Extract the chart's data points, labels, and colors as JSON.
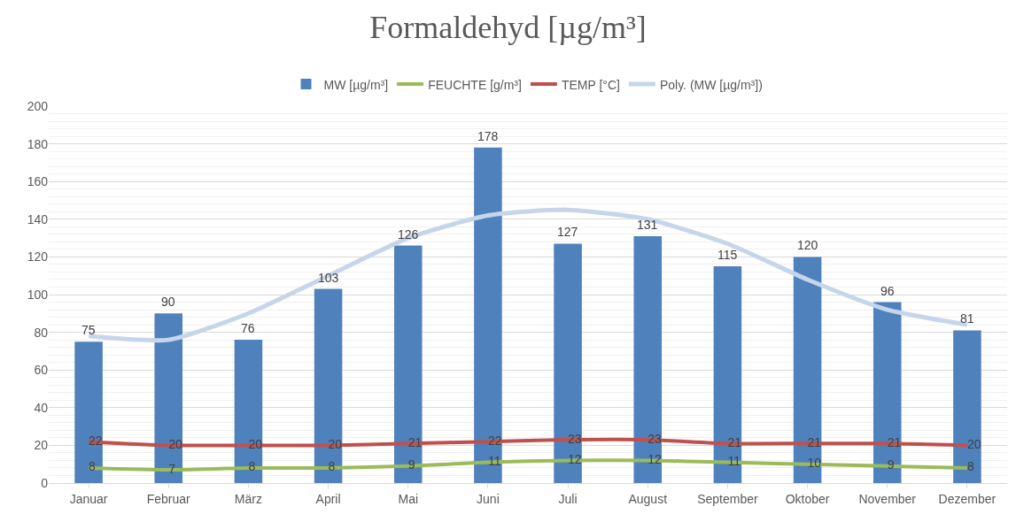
{
  "chart_data": {
    "type": "bar",
    "title": "Formaldehyd [µg/m³]",
    "categories": [
      "Januar",
      "Februar",
      "März",
      "April",
      "Mai",
      "Juni",
      "Juli",
      "August",
      "September",
      "Oktober",
      "November",
      "Dezember"
    ],
    "series": [
      {
        "name": "MW [µg/m³]",
        "color": "#4f81bd",
        "values": [
          75,
          90,
          76,
          103,
          126,
          178,
          127,
          131,
          115,
          120,
          96,
          81
        ],
        "value_labels": [
          "75",
          "90",
          "76",
          "103",
          "126",
          "178",
          "127",
          "131",
          "115",
          "120",
          "96",
          "81"
        ]
      },
      {
        "name": "FEUCHTE [g/m³]",
        "type": "line",
        "color": "#9bbb59",
        "values": [
          8,
          7,
          8,
          8,
          9,
          11,
          12,
          12,
          11,
          10,
          9,
          8
        ],
        "value_labels": [
          "8",
          "7",
          "8",
          "8",
          "9",
          "11",
          "12",
          "12",
          "11",
          "10",
          "9",
          "8"
        ]
      },
      {
        "name": "TEMP [°C]",
        "type": "line",
        "color": "#c0504d",
        "values": [
          22,
          20,
          20,
          20,
          21,
          22,
          23,
          23,
          21,
          21,
          21,
          20
        ],
        "value_labels": [
          "22",
          "20",
          "20",
          "20",
          "21",
          "22",
          "23",
          "23",
          "21",
          "21",
          "21",
          "20"
        ]
      },
      {
        "name": "Poly. (MW [µg/m³])",
        "type": "line",
        "color": "#c6d6ea",
        "values": [
          78,
          76,
          90,
          110,
          130,
          142,
          145,
          140,
          127,
          108,
          92,
          84
        ]
      }
    ],
    "ylim": [
      0,
      200
    ],
    "yticks": [
      0,
      20,
      40,
      60,
      80,
      100,
      120,
      140,
      160,
      180,
      200
    ],
    "grid": "y",
    "legend": "top",
    "marker": "none",
    "line_style": "solid"
  }
}
